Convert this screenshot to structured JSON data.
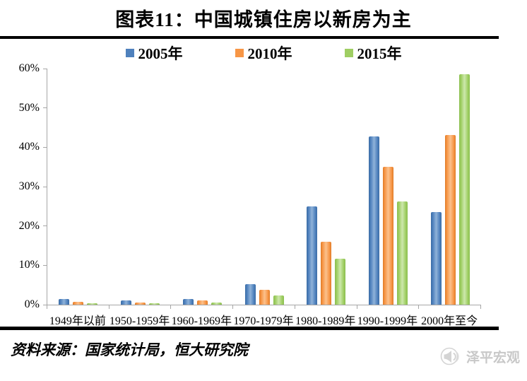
{
  "title": "图表11：中国城镇住房以新房为主",
  "source_note": "资料来源：国家统计局，恒大研究院",
  "watermark": {
    "label": "泽平宏观",
    "icon": "megaphone-icon",
    "color": "#c8c8c8"
  },
  "chart_data": {
    "type": "bar",
    "title": "图表11：中国城镇住房以新房为主",
    "categories": [
      "1949年以前",
      "1950-1959年",
      "1960-1969年",
      "1970-1979年",
      "1980-1989年",
      "1990-1999年",
      "2000年至今"
    ],
    "series": [
      {
        "name": "2005年",
        "color": "#4F81BD",
        "color_light": "#8FB2D9",
        "color_dark": "#3B6CA5",
        "values": [
          1.4,
          1.0,
          1.4,
          5.2,
          24.9,
          42.8,
          23.6
        ]
      },
      {
        "name": "2010年",
        "color": "#F79646",
        "color_light": "#FBC18D",
        "color_dark": "#DF7B27",
        "values": [
          0.8,
          0.6,
          1.0,
          3.7,
          16.0,
          35.0,
          43.2
        ]
      },
      {
        "name": "2015年",
        "color": "#9FCE63",
        "color_light": "#CDE8AC",
        "color_dark": "#8ABE4F",
        "values": [
          0.4,
          0.3,
          0.6,
          2.4,
          11.6,
          26.2,
          58.5
        ]
      }
    ],
    "xlabel": "",
    "ylabel": "",
    "ylim": [
      0,
      60
    ],
    "ytick_step": 10,
    "yticks": [
      "0%",
      "10%",
      "20%",
      "30%",
      "40%",
      "50%",
      "60%"
    ],
    "grid": false,
    "legend_position": "top",
    "axis_color": "#a6a6a6"
  }
}
